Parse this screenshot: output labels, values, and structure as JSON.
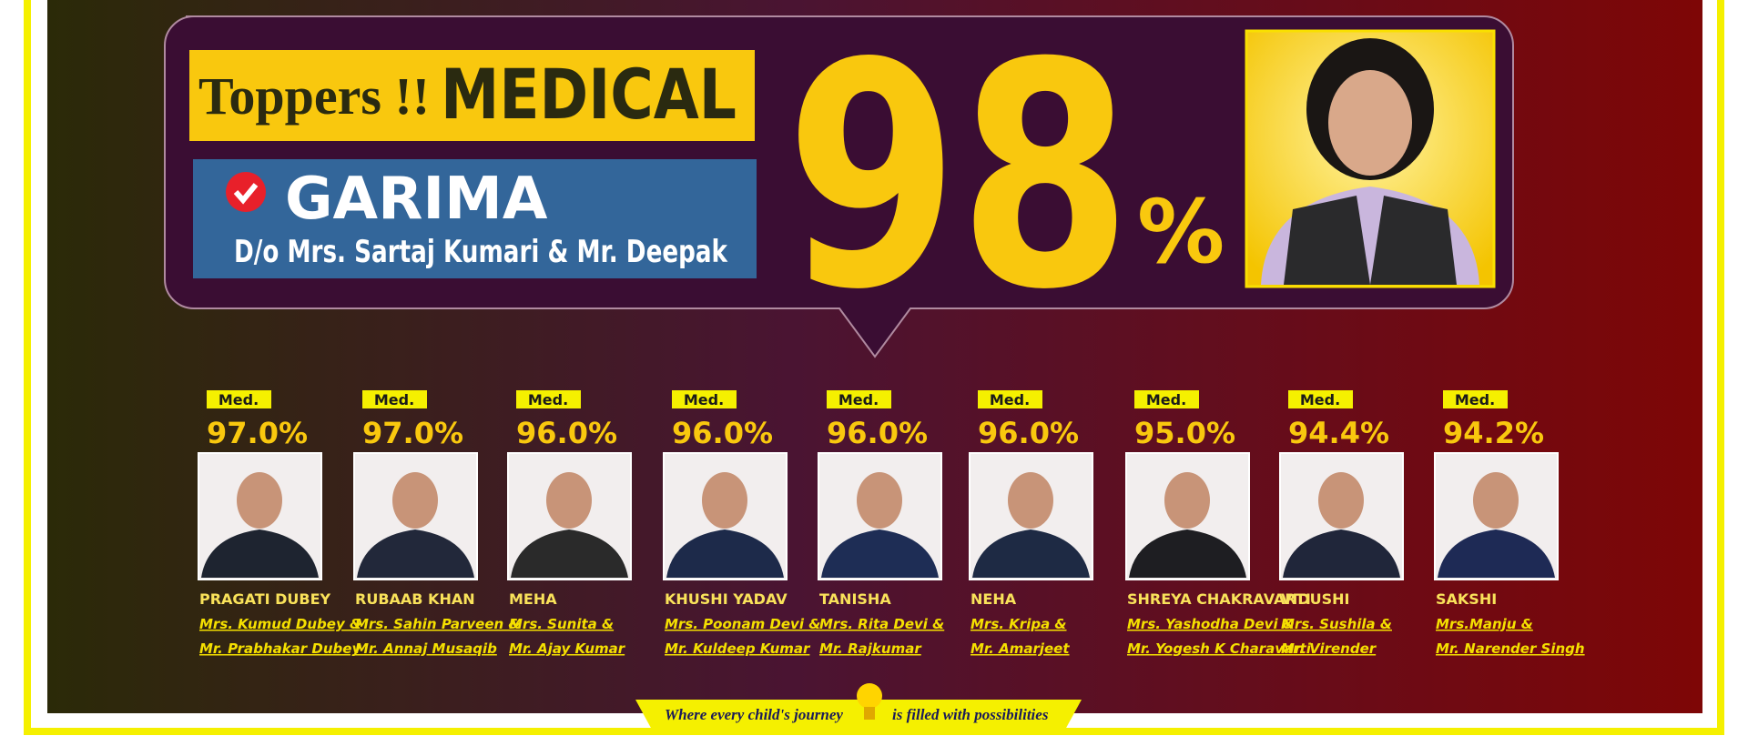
{
  "header": {
    "title_prefix": "Toppers !!",
    "title": "MEDICAL",
    "name": "GARIMA",
    "parents": "D/o Mrs. Sartaj Kumari & Mr. Deepak",
    "score": "98",
    "score_unit": "%"
  },
  "toppers": [
    {
      "tag": "Med.",
      "score": "97.0%",
      "name": "PRAGATI DUBEY",
      "parents": [
        "Mrs. Kumud Dubey &",
        "Mr. Prabhakar Dubey"
      ]
    },
    {
      "tag": "Med.",
      "score": "97.0%",
      "name": "RUBAAB KHAN",
      "parents": [
        "Mrs. Sahin Parveen &",
        "Mr. Annaj Musaqib"
      ]
    },
    {
      "tag": "Med.",
      "score": "96.0%",
      "name": "MEHA",
      "parents": [
        "Mrs. Sunita &",
        "Mr. Ajay Kumar"
      ]
    },
    {
      "tag": "Med.",
      "score": "96.0%",
      "name": "KHUSHI YADAV",
      "parents": [
        "Mrs. Poonam Devi &",
        "Mr. Kuldeep Kumar"
      ]
    },
    {
      "tag": "Med.",
      "score": "96.0%",
      "name": "TANISHA",
      "parents": [
        "Mrs. Rita Devi &",
        "Mr. Rajkumar"
      ]
    },
    {
      "tag": "Med.",
      "score": "96.0%",
      "name": "NEHA",
      "parents": [
        "Mrs. Kripa &",
        "Mr. Amarjeet"
      ]
    },
    {
      "tag": "Med.",
      "score": "95.0%",
      "name": "SHREYA CHAKRAVARTI",
      "parents": [
        "Mrs. Yashodha Devi &",
        "Mr. Yogesh K Charavarti"
      ]
    },
    {
      "tag": "Med.",
      "score": "94.4%",
      "name": "VIDUSHI",
      "parents": [
        "Mrs. Sushila &",
        "Mr. Virender"
      ]
    },
    {
      "tag": "Med.",
      "score": "94.2%",
      "name": "SAKSHI",
      "parents": [
        "Mrs.Manju &",
        "Mr. Narender Singh"
      ]
    }
  ],
  "footer": {
    "tagline_start": "Where every child's journey",
    "tagline_end": "is filled with possibilities"
  }
}
